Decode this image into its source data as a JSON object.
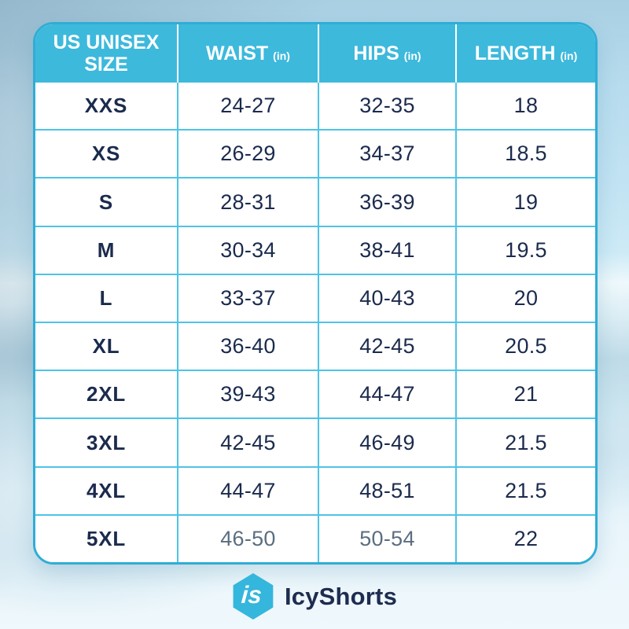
{
  "chart_data": {
    "type": "table",
    "columns": [
      {
        "label": "US UNISEX SIZE",
        "unit": ""
      },
      {
        "label": "WAIST",
        "unit": "(in)"
      },
      {
        "label": "HIPS",
        "unit": "(in)"
      },
      {
        "label": "LENGTH",
        "unit": "(in)"
      }
    ],
    "rows": [
      {
        "size": "XXS",
        "waist": "24-27",
        "hips": "32-35",
        "length": "18"
      },
      {
        "size": "XS",
        "waist": "26-29",
        "hips": "34-37",
        "length": "18.5"
      },
      {
        "size": "S",
        "waist": "28-31",
        "hips": "36-39",
        "length": "19"
      },
      {
        "size": "M",
        "waist": "30-34",
        "hips": "38-41",
        "length": "19.5"
      },
      {
        "size": "L",
        "waist": "33-37",
        "hips": "40-43",
        "length": "20"
      },
      {
        "size": "XL",
        "waist": "36-40",
        "hips": "42-45",
        "length": "20.5"
      },
      {
        "size": "2XL",
        "waist": "39-43",
        "hips": "44-47",
        "length": "21"
      },
      {
        "size": "3XL",
        "waist": "42-45",
        "hips": "46-49",
        "length": "21.5"
      },
      {
        "size": "4XL",
        "waist": "44-47",
        "hips": "48-51",
        "length": "21.5"
      },
      {
        "size": "5XL",
        "waist": "46-50",
        "hips": "50-54",
        "length": "22"
      }
    ]
  },
  "footer": {
    "logo_monogram": "is",
    "brand_name": "IcyShorts"
  },
  "colors": {
    "header_bg": "#3db9dc",
    "grid_line": "#4fc3e6",
    "outer_border": "#2fadd5",
    "text_navy": "#1b2b4d",
    "text_muted": "#5b6e80",
    "brand_cyan": "#35b6dc",
    "brand_navy": "#1e2c50"
  }
}
